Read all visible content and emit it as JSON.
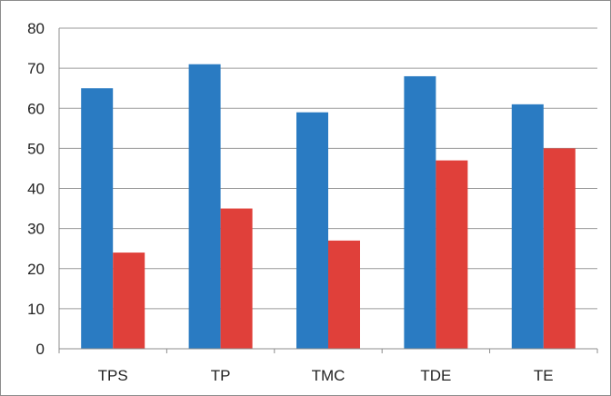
{
  "chart_data": {
    "type": "bar",
    "title": "",
    "xlabel": "",
    "ylabel": "",
    "categories": [
      "TPS",
      "TP",
      "TMC",
      "TDE",
      "TE"
    ],
    "series": [
      {
        "values": [
          65,
          71,
          59,
          68,
          61
        ],
        "color": "#2a7bc2"
      },
      {
        "values": [
          24,
          35,
          27,
          47,
          50
        ],
        "color": "#e0403a"
      }
    ],
    "ylim": [
      0,
      80
    ],
    "yticks": [
      0,
      10,
      20,
      30,
      40,
      50,
      60,
      70,
      80
    ],
    "grid": true,
    "legend": "none"
  }
}
